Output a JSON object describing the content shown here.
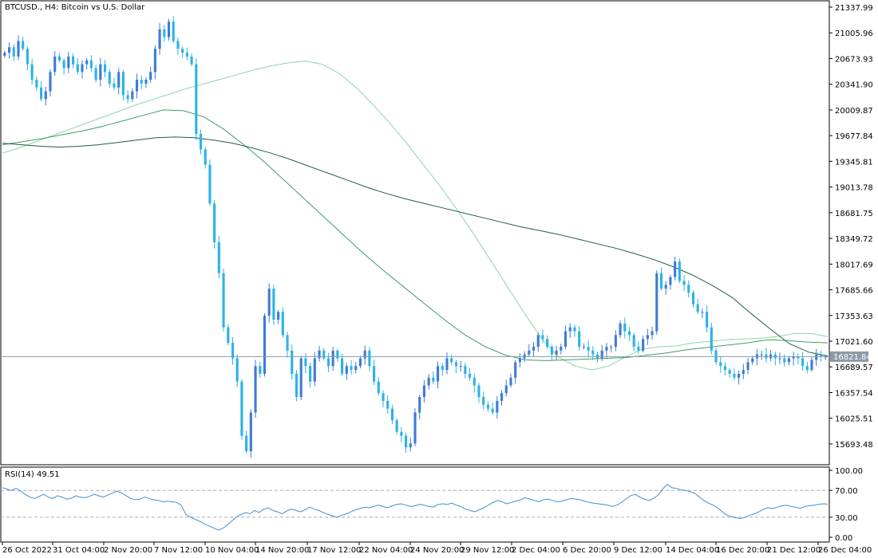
{
  "title": "BTCUSD., H4:  Bitcoin vs U.S. Dollar",
  "current_price_label": "16821.84",
  "colors": {
    "bull": "#3f7bd6",
    "bear": "#2bb3e6",
    "ma_fast": "#8fd3a8",
    "ma_mid": "#3f9d63",
    "ma_slow": "#1f5f3e",
    "rsi": "#3f8fd0",
    "price_line": "#8a9aa7"
  },
  "chart_data": [
    {
      "type": "candlestick",
      "title": "BTCUSD., H4:  Bitcoin vs U.S. Dollar",
      "y_ticks": [
        "21337.99",
        "21005.96",
        "20673.93",
        "20341.90",
        "20009.87",
        "19677.84",
        "19345.81",
        "19013.78",
        "18681.75",
        "18349.72",
        "18017.69",
        "17685.66",
        "17353.63",
        "17021.60",
        "16689.57",
        "16357.54",
        "16025.51",
        "15693.48"
      ],
      "ylim": [
        15425,
        21420
      ],
      "x_labels": [
        "26 Oct 2022",
        "31 Oct 04:00",
        "2 Nov 20:00",
        "7 Nov 12:00",
        "10 Nov 04:00",
        "14 Nov 20:00",
        "17 Nov 12:00",
        "22 Nov 04:00",
        "24 Nov 20:00",
        "29 Nov 12:00",
        "2 Dec 04:00",
        "6 Dec 20:00",
        "9 Dec 12:00",
        "14 Dec 04:00",
        "16 Dec 20:00",
        "21 Dec 12:00",
        "26 Dec 04:00"
      ],
      "current_price": 16821.84,
      "close": [
        20750,
        20820,
        20700,
        20900,
        20800,
        20600,
        20400,
        20300,
        20150,
        20250,
        20500,
        20700,
        20650,
        20550,
        20700,
        20600,
        20500,
        20600,
        20650,
        20550,
        20400,
        20600,
        20500,
        20350,
        20300,
        20500,
        20200,
        20150,
        20250,
        20400,
        20350,
        20400,
        20500,
        20800,
        21050,
        20950,
        21150,
        20900,
        20800,
        20750,
        20700,
        20600,
        19700,
        19500,
        19300,
        18800,
        18300,
        17900,
        17200,
        17000,
        16800,
        16500,
        15800,
        15600,
        16100,
        16700,
        16600,
        17350,
        17700,
        17300,
        17400,
        17100,
        16900,
        16600,
        16300,
        16800,
        16700,
        16500,
        16800,
        16900,
        16800,
        16700,
        16900,
        16800,
        16600,
        16700,
        16650,
        16700,
        16800,
        16900,
        16700,
        16500,
        16350,
        16250,
        16150,
        16000,
        15850,
        15800,
        15650,
        15700,
        16100,
        16300,
        16450,
        16550,
        16500,
        16700,
        16650,
        16800,
        16750,
        16700,
        16700,
        16600,
        16550,
        16450,
        16300,
        16200,
        16150,
        16100,
        16250,
        16350,
        16450,
        16550,
        16750,
        16800,
        16850,
        16900,
        16950,
        17100,
        17050,
        16950,
        16850,
        16900,
        16950,
        17150,
        17200,
        17150,
        16950,
        16950,
        16900,
        16850,
        16800,
        16900,
        16950,
        16950,
        17100,
        17250,
        17150,
        17100,
        16950,
        16900,
        17050,
        17100,
        17150,
        17900,
        17700,
        17750,
        17850,
        18050,
        17800,
        17750,
        17650,
        17500,
        17400,
        17400,
        17200,
        16900,
        16750,
        16700,
        16650,
        16600,
        16550,
        16600,
        16650,
        16750,
        16800,
        16850,
        16850,
        16800,
        16850,
        16800,
        16800,
        16750,
        16800,
        16820,
        16800,
        16700,
        16650,
        16780,
        16850,
        16820,
        16822
      ],
      "ma_fast": [
        19450,
        19520,
        19600,
        19680,
        19760,
        19840,
        19920,
        20000,
        20080,
        20150,
        20220,
        20290,
        20350,
        20410,
        20470,
        20530,
        20580,
        20620,
        20640,
        20600,
        20480,
        20300,
        20080,
        19840,
        19580,
        19300,
        19020,
        18720,
        18400,
        18060,
        17720,
        17380,
        17060,
        16820,
        16700,
        16650,
        16700,
        16820,
        16920,
        16950,
        16960,
        17000,
        17020,
        17040,
        17050,
        17060,
        17080,
        17120,
        17120,
        17080
      ],
      "ma_mid": [
        19560,
        19600,
        19640,
        19690,
        19740,
        19800,
        19870,
        19940,
        20010,
        20000,
        19920,
        19760,
        19560,
        19340,
        19100,
        18860,
        18620,
        18380,
        18140,
        17920,
        17710,
        17500,
        17290,
        17100,
        16950,
        16840,
        16780,
        16770,
        16780,
        16790,
        16800,
        16810,
        16840,
        16870,
        16910,
        16940,
        16970,
        17000,
        17040,
        17030,
        17010,
        17000
      ],
      "ma_slow": [
        19580,
        19560,
        19540,
        19530,
        19540,
        19560,
        19590,
        19620,
        19650,
        19660,
        19650,
        19620,
        19580,
        19520,
        19450,
        19370,
        19280,
        19190,
        19100,
        19010,
        18930,
        18860,
        18800,
        18740,
        18680,
        18620,
        18560,
        18500,
        18450,
        18400,
        18340,
        18280,
        18220,
        18150,
        18070,
        17980,
        17870,
        17740,
        17590,
        17380,
        17180,
        16990,
        16880,
        16830
      ]
    },
    {
      "type": "line",
      "title": "RSI(14) 49.51",
      "y_ticks": [
        "100.00",
        "70.00",
        "30.00",
        "0.00"
      ],
      "ylim": [
        0,
        100
      ],
      "levels": [
        70,
        30
      ],
      "values": [
        74,
        72,
        70,
        73,
        69,
        64,
        60,
        58,
        61,
        64,
        60,
        58,
        62,
        60,
        57,
        58,
        62,
        60,
        59,
        61,
        64,
        62,
        60,
        63,
        66,
        69,
        66,
        62,
        58,
        56,
        57,
        60,
        58,
        56,
        55,
        53,
        54,
        53,
        52,
        48,
        34,
        30,
        27,
        24,
        20,
        17,
        14,
        11,
        13,
        18,
        24,
        30,
        34,
        37,
        35,
        40,
        37,
        42,
        44,
        40,
        38,
        35,
        39,
        42,
        40,
        38,
        41,
        45,
        42,
        40,
        37,
        34,
        32,
        30,
        33,
        35,
        38,
        41,
        43,
        45,
        44,
        46,
        48,
        46,
        44,
        47,
        49,
        50,
        48,
        46,
        47,
        49,
        48,
        46,
        45,
        49,
        50,
        49,
        51,
        48,
        46,
        42,
        40,
        38,
        41,
        44,
        48,
        52,
        55,
        53,
        50,
        52,
        54,
        56,
        59,
        57,
        55,
        53,
        56,
        57,
        55,
        53,
        54,
        56,
        58,
        57,
        56,
        54,
        52,
        51,
        50,
        49,
        48,
        46,
        48,
        52,
        57,
        62,
        64,
        60,
        57,
        55,
        58,
        63,
        72,
        79,
        74,
        73,
        71,
        70,
        68,
        66,
        60,
        55,
        51,
        48,
        44,
        38,
        33,
        31,
        29,
        28,
        30,
        33,
        35,
        38,
        42,
        44,
        43,
        45,
        47,
        48,
        46,
        45,
        43,
        46,
        47,
        48,
        49,
        50,
        49.5
      ]
    }
  ]
}
